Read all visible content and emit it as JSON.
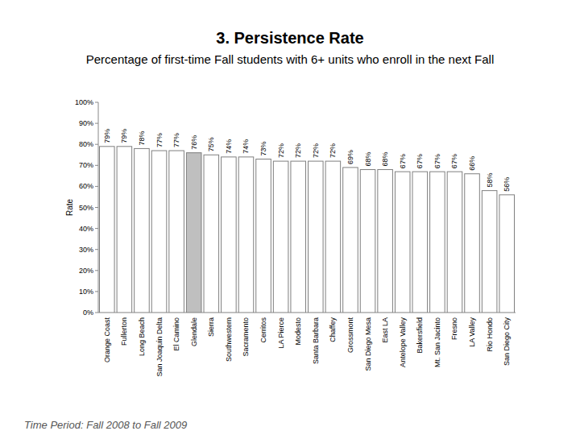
{
  "chart_data": {
    "type": "bar",
    "title": "3. Persistence Rate",
    "subtitle": "Percentage of first-time Fall students with 6+ units who enroll in the next Fall",
    "y_label": "Rate",
    "footnote": "Time Period: Fall 2008 to Fall 2009",
    "categories": [
      "Orange Coast",
      "Fullerton",
      "Long Beach",
      "San Joaquin Delta",
      "El Camino",
      "Glendale",
      "Sierra",
      "Southwestern",
      "Sacramento",
      "Cerritos",
      "LA Pierce",
      "Modesto",
      "Santa Barbara",
      "Chaffey",
      "Grossmont",
      "San Diego Mesa",
      "East LA",
      "Antelope Valley",
      "Bakersfield",
      "Mt. San Jacinto",
      "Fresno",
      "LA Valley",
      "Rio Hondo",
      "San Diego City"
    ],
    "values": [
      79,
      79,
      78,
      77,
      77,
      76,
      75,
      74,
      74,
      73,
      72,
      72,
      72,
      72,
      69,
      68,
      68,
      67,
      67,
      67,
      67,
      66,
      58,
      56
    ],
    "value_labels": [
      "79%",
      "79%",
      "78%",
      "77%",
      "77%",
      "76%",
      "75%",
      "74%",
      "74%",
      "73%",
      "72%",
      "72%",
      "72%",
      "72%",
      "69%",
      "68%",
      "68%",
      "67%",
      "67%",
      "67%",
      "67%",
      "66%",
      "58%",
      "56%"
    ],
    "colors": [
      "#ffffff",
      "#ffffff",
      "#ffffff",
      "#ffffff",
      "#ffffff",
      "#bfbfbf",
      "#ffffff",
      "#ffffff",
      "#ffffff",
      "#ffffff",
      "#ffffff",
      "#ffffff",
      "#ffffff",
      "#ffffff",
      "#ffffff",
      "#ffffff",
      "#ffffff",
      "#ffffff",
      "#ffffff",
      "#ffffff",
      "#ffffff",
      "#ffffff",
      "#ffffff",
      "#ffffff"
    ],
    "ylim": [
      0,
      100
    ],
    "yticks": [
      {
        "value": 0,
        "label": "0%"
      },
      {
        "value": 10,
        "label": "10%"
      },
      {
        "value": 20,
        "label": "20%"
      },
      {
        "value": 30,
        "label": "30%"
      },
      {
        "value": 40,
        "label": "40%"
      },
      {
        "value": 50,
        "label": "50%"
      },
      {
        "value": 60,
        "label": "60%"
      },
      {
        "value": 70,
        "label": "70%"
      },
      {
        "value": 80,
        "label": "80%"
      },
      {
        "value": 90,
        "label": "90%"
      },
      {
        "value": 100,
        "label": "100%"
      }
    ],
    "grid": false,
    "data_labels": true
  }
}
